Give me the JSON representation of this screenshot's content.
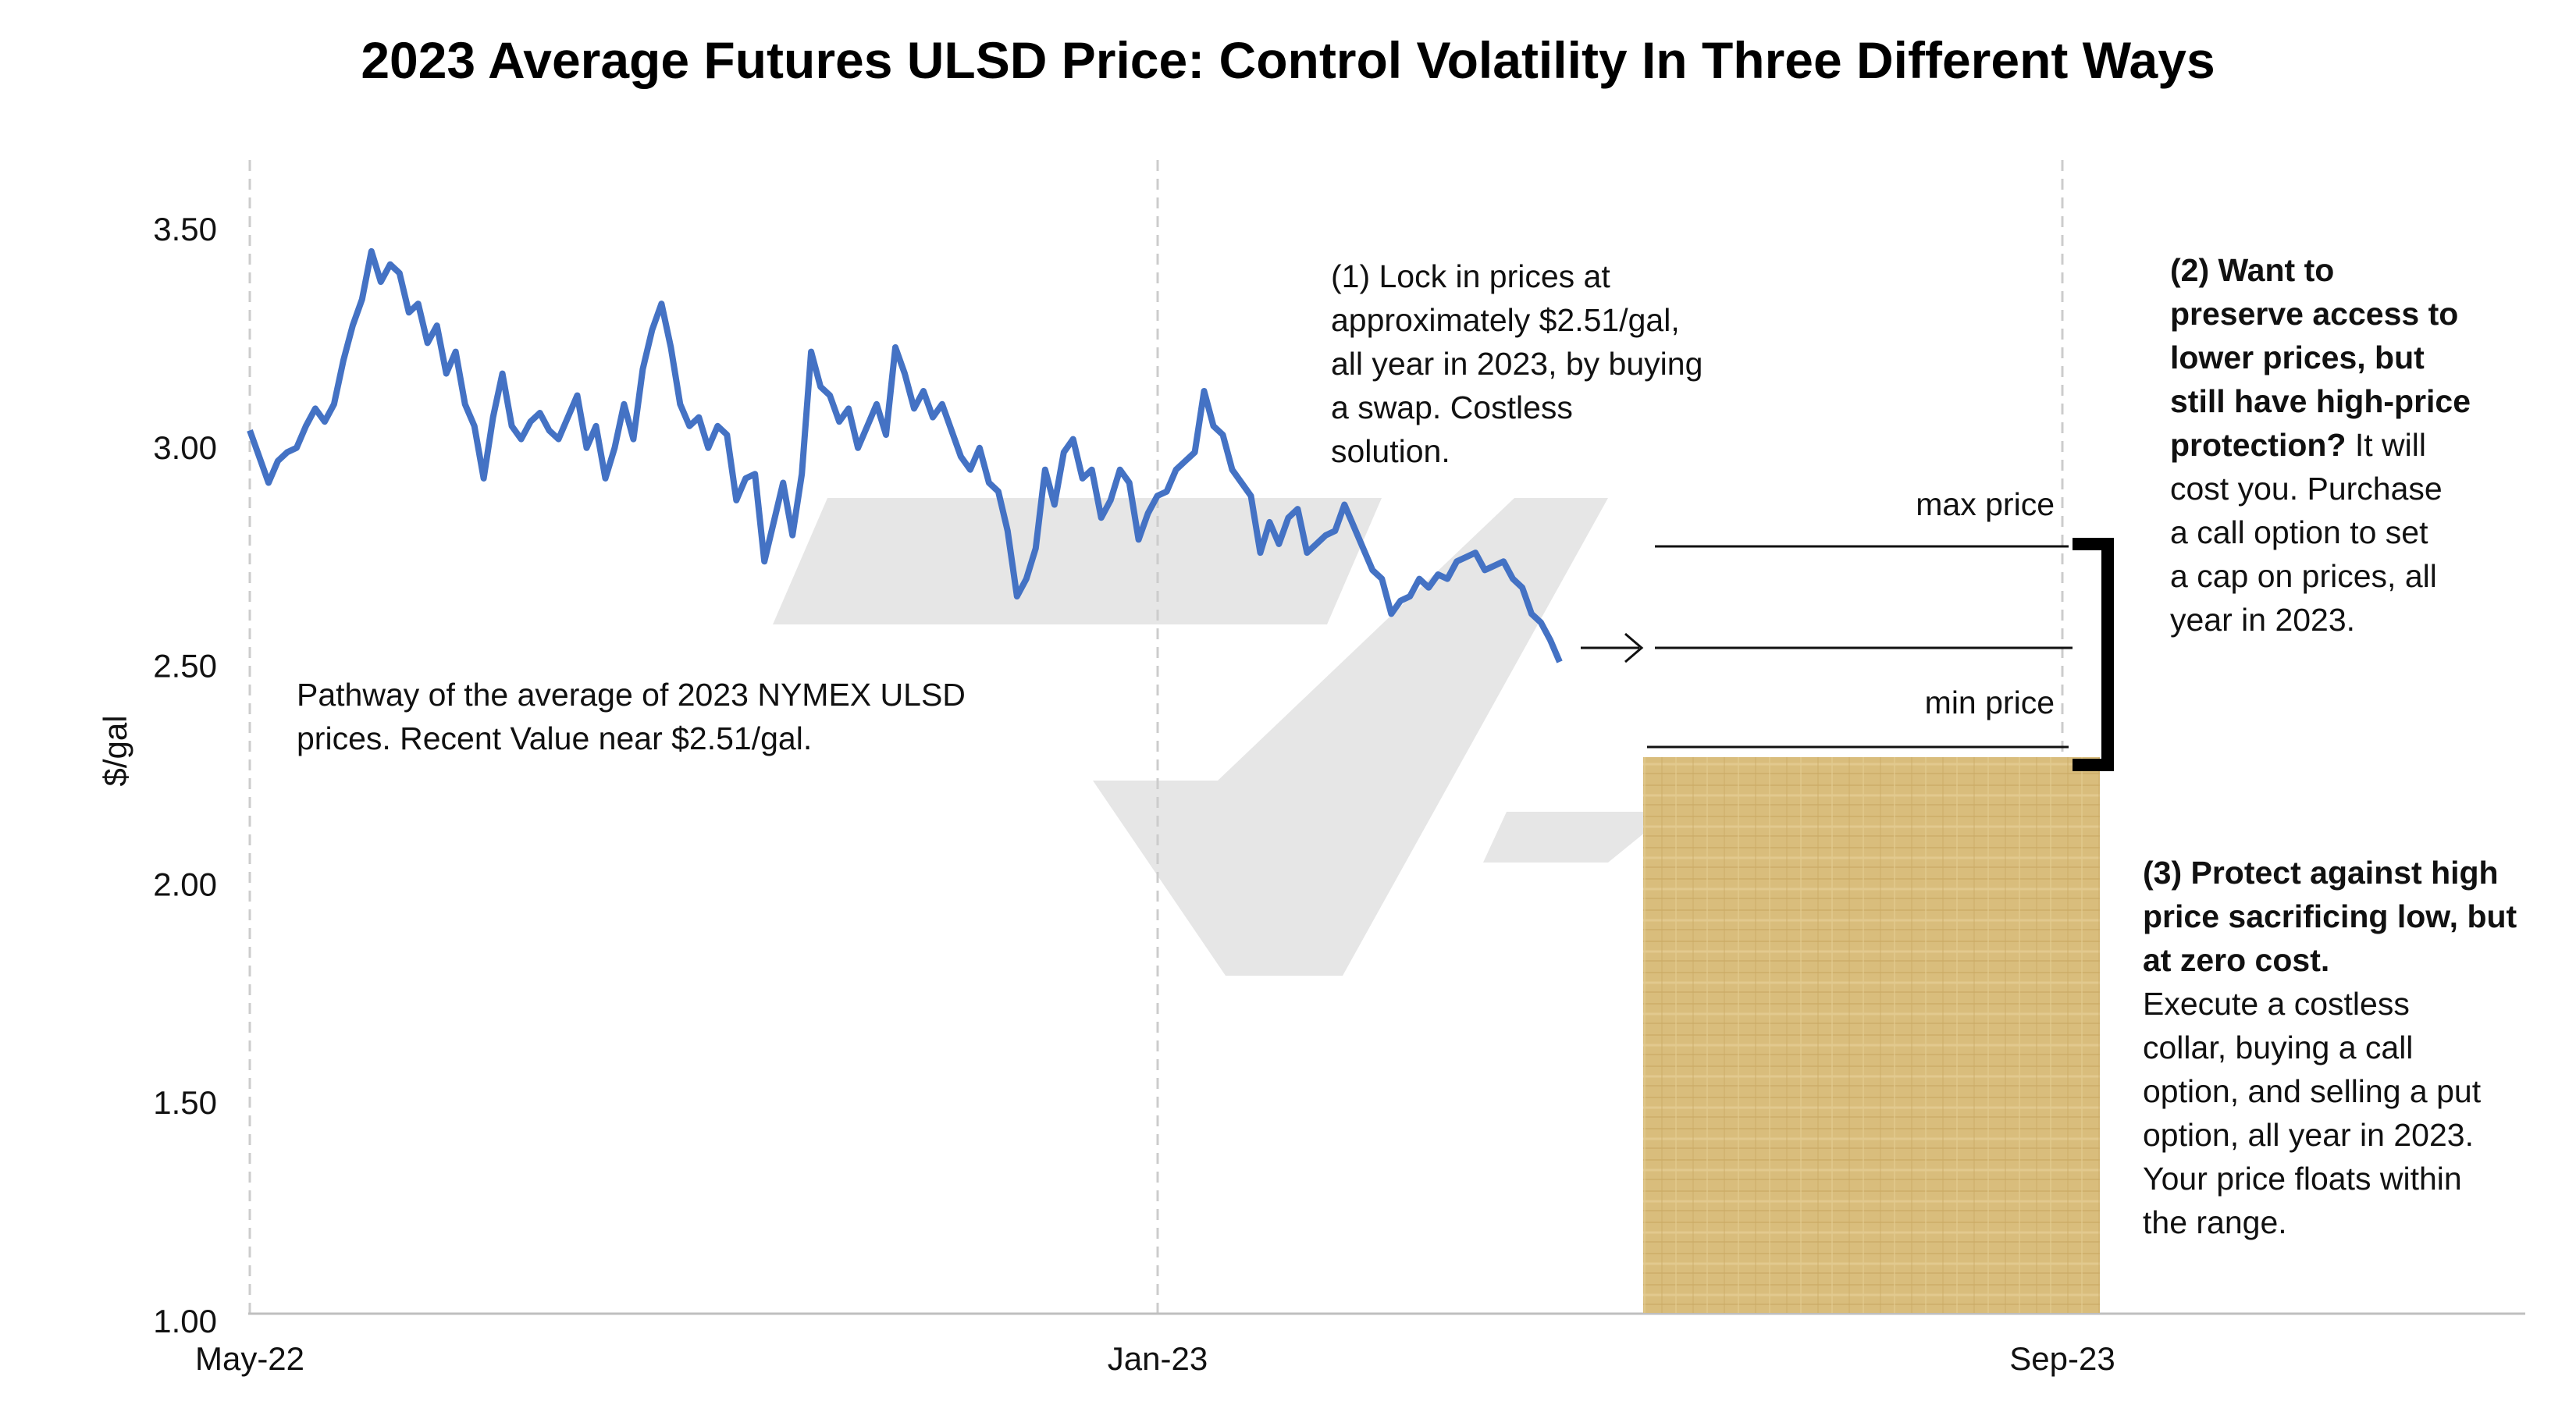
{
  "chart_data": {
    "type": "line",
    "title": "2023 Average Futures ULSD Price: Control Volatility In Three Different Ways",
    "xlabel": "",
    "ylabel": "$/gal",
    "ylim": [
      1.0,
      3.65
    ],
    "yticks": [
      "1.00",
      "1.50",
      "2.00",
      "2.50",
      "3.00",
      "3.50"
    ],
    "xticks": [
      "May-22",
      "Jan-23",
      "Sep-23"
    ],
    "grid": "vertical dashed",
    "series": [
      {
        "color": "#4472c4",
        "values": [
          3.04,
          2.98,
          2.92,
          2.97,
          2.99,
          3.0,
          3.05,
          3.09,
          3.06,
          3.1,
          3.2,
          3.28,
          3.34,
          3.45,
          3.38,
          3.42,
          3.4,
          3.31,
          3.33,
          3.24,
          3.28,
          3.17,
          3.22,
          3.1,
          3.05,
          2.93,
          3.07,
          3.17,
          3.05,
          3.02,
          3.06,
          3.08,
          3.04,
          3.02,
          3.07,
          3.12,
          3.0,
          3.05,
          2.93,
          3.0,
          3.1,
          3.02,
          3.18,
          3.27,
          3.33,
          3.23,
          3.1,
          3.05,
          3.07,
          3.0,
          3.05,
          3.03,
          2.88,
          2.93,
          2.94,
          2.74,
          2.83,
          2.92,
          2.8,
          2.94,
          3.22,
          3.14,
          3.12,
          3.06,
          3.09,
          3.0,
          3.05,
          3.1,
          3.03,
          3.23,
          3.17,
          3.09,
          3.13,
          3.07,
          3.1,
          3.04,
          2.98,
          2.95,
          3.0,
          2.92,
          2.9,
          2.81,
          2.66,
          2.7,
          2.77,
          2.95,
          2.87,
          2.99,
          3.02,
          2.93,
          2.95,
          2.84,
          2.88,
          2.95,
          2.92,
          2.79,
          2.85,
          2.89,
          2.9,
          2.95,
          2.97,
          2.99,
          3.13,
          3.05,
          3.03,
          2.95,
          2.92,
          2.89,
          2.76,
          2.83,
          2.78,
          2.84,
          2.86,
          2.76,
          2.78,
          2.8,
          2.81,
          2.87,
          2.82,
          2.77,
          2.72,
          2.7,
          2.62,
          2.65,
          2.66,
          2.7,
          2.68,
          2.71,
          2.7,
          2.74,
          2.75,
          2.76,
          2.72,
          2.73,
          2.74,
          2.7,
          2.68,
          2.62,
          2.6,
          2.56,
          2.51
        ]
      }
    ],
    "x_start": "May-22",
    "x_end": "Sep-23"
  },
  "annotations": {
    "pathway": "Pathway of the average of 2023 NYMEX ULSD\nprices.  Recent Value near $2.51/gal.",
    "swap": "(1) Lock in prices at\napproximately $2.51/gal,\nall year in 2023, by buying\na swap. Costless\nsolution.",
    "call_bold": "(2) Want to\npreserve access to\nlower prices, but\nstill have high-price\nprotection?",
    "call_rest": " It will\ncost you. Purchase\na call option to set\na cap on prices, all\nyear in 2023.",
    "collar_bold": "(3) Protect against high\nprice sacrificing low, but\nat zero cost.",
    "collar_rest": "\nExecute a costless\ncollar, buying a call\noption, and selling a put\noption, all year in 2023.\nYour price floats within\nthe range.",
    "max_price": "max price",
    "min_price": "min price"
  },
  "colors": {
    "line": "#4472c4",
    "collar_box": "#d9bd7c",
    "watermark": "#e6e6e6"
  }
}
